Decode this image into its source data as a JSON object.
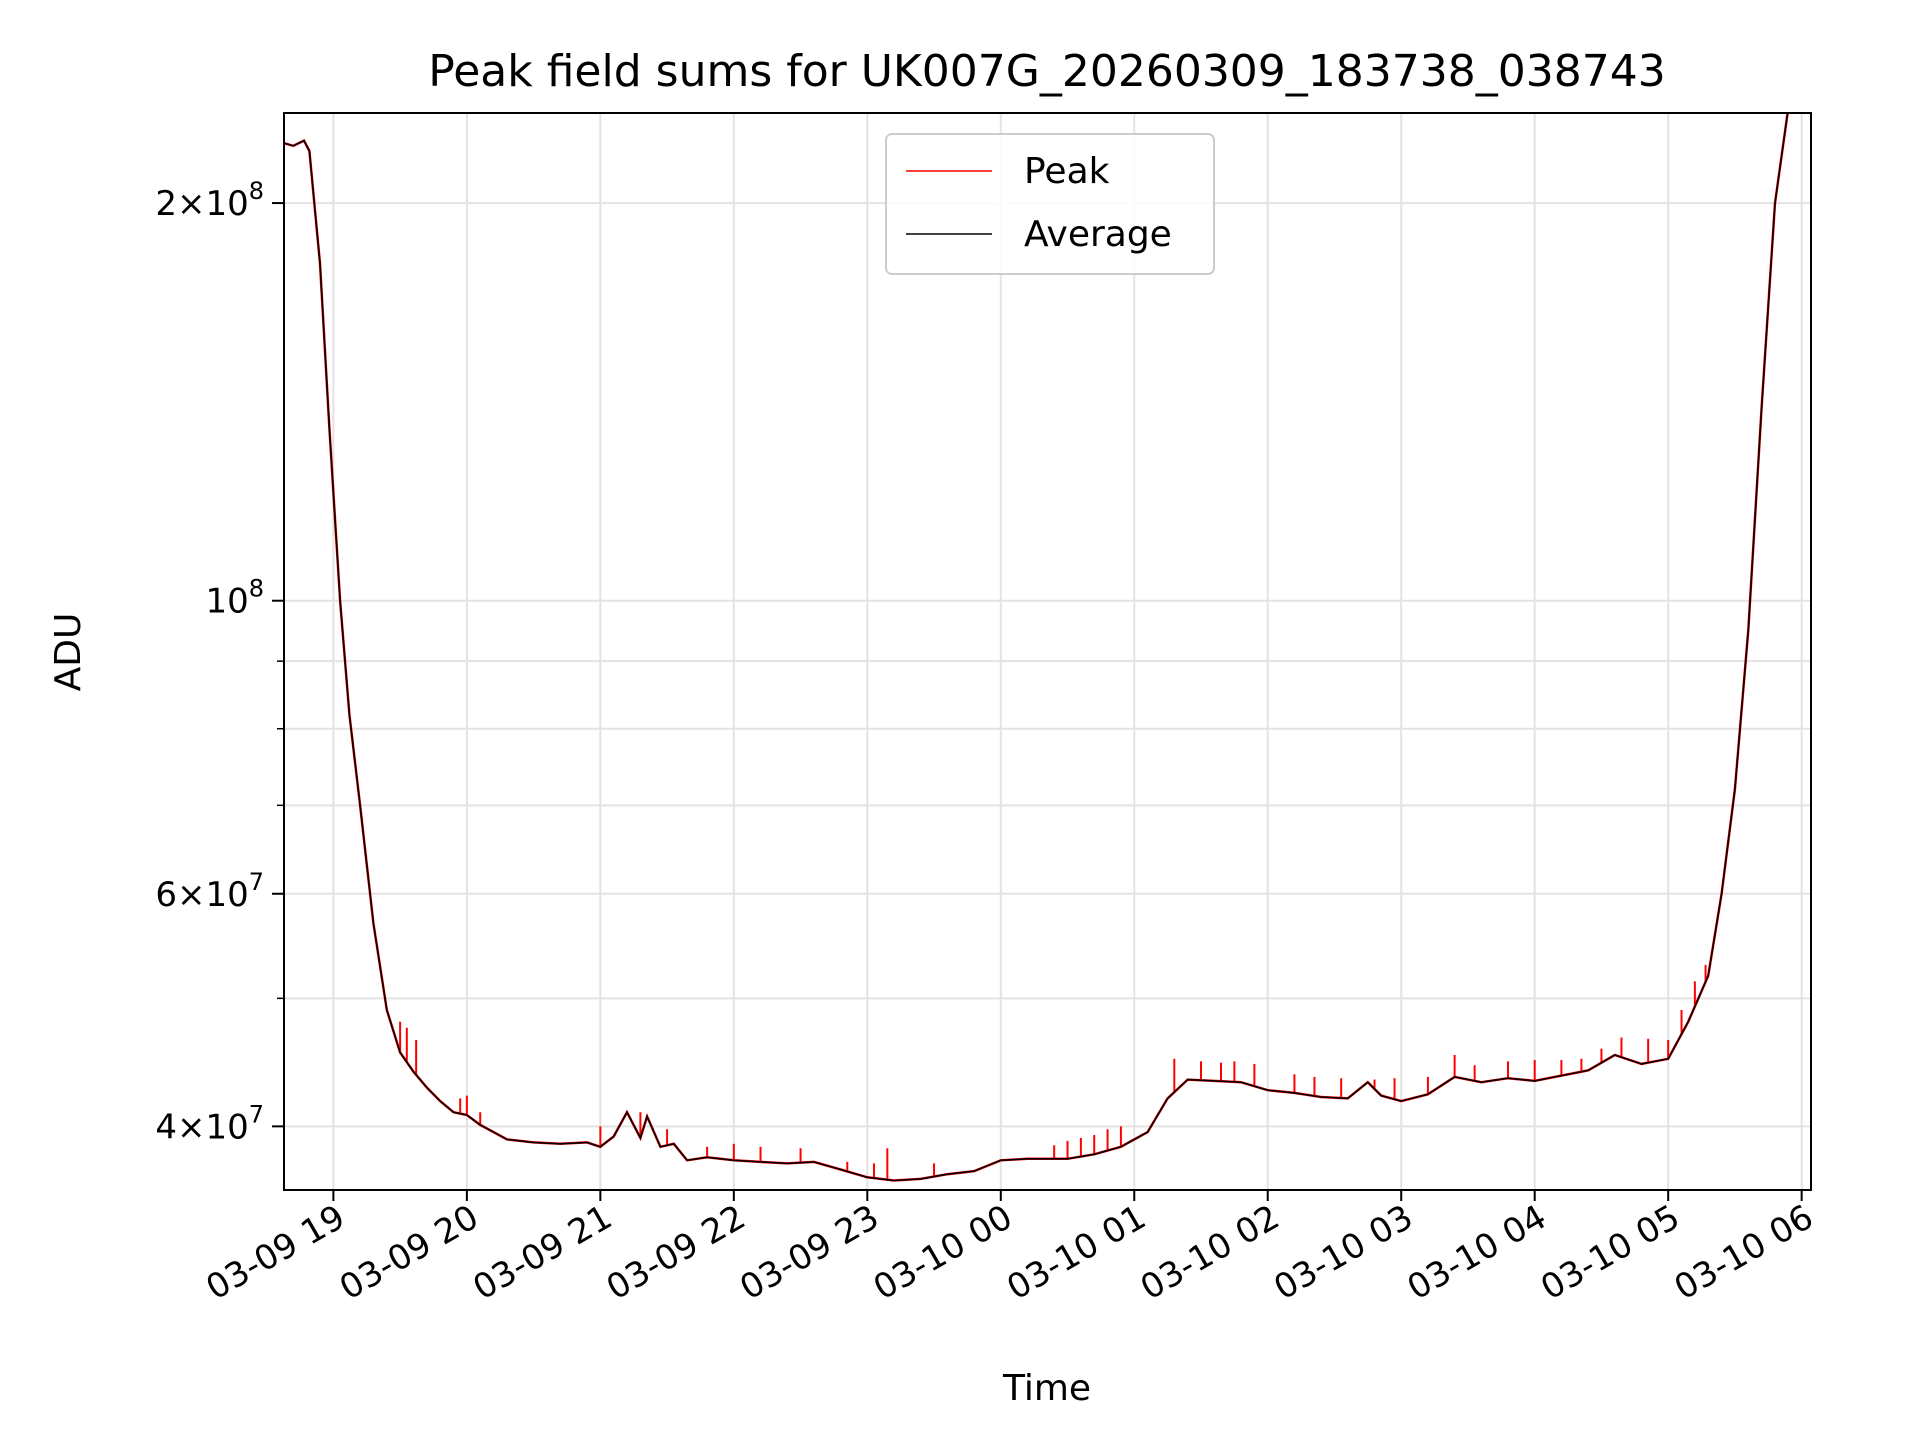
{
  "chart_data": {
    "type": "line",
    "title": "Peak field sums for UK007G_20260309_183738_038743",
    "xlabel": "Time",
    "ylabel": "ADU",
    "yscale": "log",
    "ylim": [
      35800000,
      234000000
    ],
    "xlim": [
      18.63,
      30.07
    ],
    "grid": true,
    "legend_position": "upper-center",
    "x_ticks": [
      {
        "value": 19,
        "label": "03-09 19"
      },
      {
        "value": 20,
        "label": "03-09 20"
      },
      {
        "value": 21,
        "label": "03-09 21"
      },
      {
        "value": 22,
        "label": "03-09 22"
      },
      {
        "value": 23,
        "label": "03-09 23"
      },
      {
        "value": 24,
        "label": "03-10 00"
      },
      {
        "value": 25,
        "label": "03-10 01"
      },
      {
        "value": 26,
        "label": "03-10 02"
      },
      {
        "value": 27,
        "label": "03-10 03"
      },
      {
        "value": 28,
        "label": "03-10 04"
      },
      {
        "value": 29,
        "label": "03-10 05"
      },
      {
        "value": 30,
        "label": "03-10 06"
      }
    ],
    "y_major_ticks": [
      {
        "value": 40000000,
        "mantissa": "4",
        "exponent": "7"
      },
      {
        "value": 60000000,
        "mantissa": "6",
        "exponent": "7"
      },
      {
        "value": 100000000,
        "mantissa": "",
        "exponent": "8"
      },
      {
        "value": 200000000,
        "mantissa": "2",
        "exponent": "8"
      }
    ],
    "y_minor_ticks": [
      50000000,
      70000000,
      80000000,
      90000000,
      300000000
    ],
    "series": [
      {
        "name": "Peak",
        "color": "#ff0000",
        "spikes": [
          [
            19.5,
            48000000
          ],
          [
            19.55,
            47500000
          ],
          [
            19.62,
            46500000
          ],
          [
            19.95,
            42000000
          ],
          [
            20.0,
            42200000
          ],
          [
            20.1,
            41000000
          ],
          [
            21.0,
            40000000
          ],
          [
            21.3,
            41000000
          ],
          [
            21.5,
            39800000
          ],
          [
            21.8,
            38600000
          ],
          [
            22.0,
            38800000
          ],
          [
            22.2,
            38600000
          ],
          [
            22.5,
            38500000
          ],
          [
            22.85,
            37600000
          ],
          [
            23.05,
            37500000
          ],
          [
            23.15,
            38500000
          ],
          [
            23.5,
            37500000
          ],
          [
            24.4,
            38700000
          ],
          [
            24.5,
            39000000
          ],
          [
            24.6,
            39200000
          ],
          [
            24.7,
            39400000
          ],
          [
            24.8,
            39800000
          ],
          [
            24.9,
            40000000
          ],
          [
            25.3,
            45000000
          ],
          [
            25.5,
            44800000
          ],
          [
            25.65,
            44700000
          ],
          [
            25.75,
            44800000
          ],
          [
            25.9,
            44600000
          ],
          [
            26.2,
            43800000
          ],
          [
            26.35,
            43600000
          ],
          [
            26.55,
            43500000
          ],
          [
            26.8,
            43400000
          ],
          [
            26.95,
            43500000
          ],
          [
            27.2,
            43600000
          ],
          [
            27.4,
            45300000
          ],
          [
            27.55,
            44500000
          ],
          [
            27.8,
            44800000
          ],
          [
            28.0,
            44900000
          ],
          [
            28.2,
            44900000
          ],
          [
            28.35,
            45000000
          ],
          [
            28.5,
            45800000
          ],
          [
            28.65,
            46700000
          ],
          [
            28.85,
            46600000
          ],
          [
            29.0,
            46500000
          ],
          [
            29.1,
            49000000
          ],
          [
            29.2,
            51500000
          ],
          [
            29.28,
            53000000
          ]
        ]
      },
      {
        "name": "Average",
        "color": "#000000",
        "points": [
          [
            18.63,
            222000000
          ],
          [
            18.7,
            221000000
          ],
          [
            18.78,
            223000000
          ],
          [
            18.82,
            219000000
          ],
          [
            18.9,
            180000000
          ],
          [
            18.97,
            135000000
          ],
          [
            19.05,
            100000000
          ],
          [
            19.12,
            82000000
          ],
          [
            19.2,
            70000000
          ],
          [
            19.3,
            57000000
          ],
          [
            19.4,
            49000000
          ],
          [
            19.5,
            45500000
          ],
          [
            19.6,
            44000000
          ],
          [
            19.7,
            42800000
          ],
          [
            19.8,
            41800000
          ],
          [
            19.9,
            41000000
          ],
          [
            20.0,
            40800000
          ],
          [
            20.1,
            40100000
          ],
          [
            20.2,
            39600000
          ],
          [
            20.3,
            39100000
          ],
          [
            20.5,
            38900000
          ],
          [
            20.7,
            38800000
          ],
          [
            20.9,
            38900000
          ],
          [
            21.0,
            38600000
          ],
          [
            21.1,
            39300000
          ],
          [
            21.2,
            41000000
          ],
          [
            21.3,
            39200000
          ],
          [
            21.35,
            40700000
          ],
          [
            21.45,
            38600000
          ],
          [
            21.55,
            38800000
          ],
          [
            21.65,
            37700000
          ],
          [
            21.8,
            37900000
          ],
          [
            22.0,
            37700000
          ],
          [
            22.2,
            37600000
          ],
          [
            22.4,
            37500000
          ],
          [
            22.6,
            37600000
          ],
          [
            22.8,
            37100000
          ],
          [
            23.0,
            36600000
          ],
          [
            23.2,
            36400000
          ],
          [
            23.4,
            36500000
          ],
          [
            23.6,
            36800000
          ],
          [
            23.8,
            37000000
          ],
          [
            24.0,
            37700000
          ],
          [
            24.2,
            37800000
          ],
          [
            24.5,
            37800000
          ],
          [
            24.7,
            38100000
          ],
          [
            24.9,
            38600000
          ],
          [
            25.1,
            39600000
          ],
          [
            25.25,
            42000000
          ],
          [
            25.4,
            43400000
          ],
          [
            25.6,
            43300000
          ],
          [
            25.8,
            43200000
          ],
          [
            26.0,
            42600000
          ],
          [
            26.2,
            42400000
          ],
          [
            26.4,
            42100000
          ],
          [
            26.6,
            42000000
          ],
          [
            26.75,
            43200000
          ],
          [
            26.85,
            42200000
          ],
          [
            27.0,
            41800000
          ],
          [
            27.2,
            42300000
          ],
          [
            27.4,
            43600000
          ],
          [
            27.6,
            43200000
          ],
          [
            27.8,
            43500000
          ],
          [
            28.0,
            43300000
          ],
          [
            28.2,
            43700000
          ],
          [
            28.4,
            44100000
          ],
          [
            28.6,
            45300000
          ],
          [
            28.8,
            44600000
          ],
          [
            29.0,
            45000000
          ],
          [
            29.15,
            48000000
          ],
          [
            29.3,
            52000000
          ],
          [
            29.4,
            60000000
          ],
          [
            29.5,
            72000000
          ],
          [
            29.6,
            95000000
          ],
          [
            29.7,
            140000000
          ],
          [
            29.8,
            200000000
          ],
          [
            29.9,
            236000000
          ]
        ]
      }
    ]
  }
}
